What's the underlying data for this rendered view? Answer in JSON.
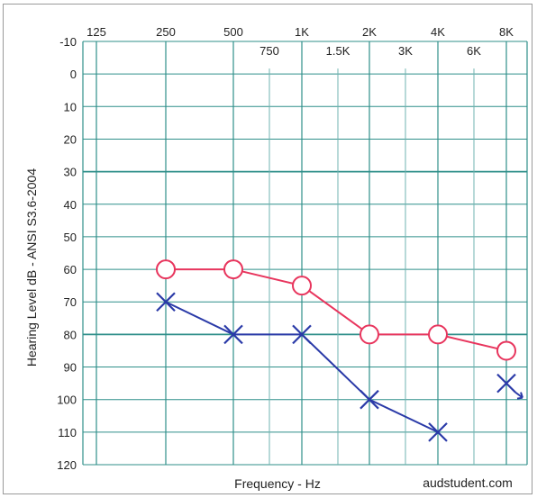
{
  "chart_data": {
    "type": "line",
    "ylabel": "Hearing Level dB - ANSI S3.6-2004",
    "xlabel": "Frequency - Hz",
    "watermark": "audstudent.com",
    "x_ticks_top": [
      "125",
      "250",
      "500",
      "1K",
      "2K",
      "4K",
      "8K"
    ],
    "x_ticks_mid": [
      "750",
      "1.5K",
      "3K",
      "6K"
    ],
    "y_ticks": [
      "-10",
      "0",
      "10",
      "20",
      "30",
      "40",
      "50",
      "60",
      "70",
      "80",
      "90",
      "100",
      "110",
      "120"
    ],
    "ylim": [
      -10,
      120
    ],
    "y_inverted": true,
    "grid": true,
    "series": [
      {
        "color": "#e8355d",
        "marker": "circle",
        "x": [
          "250",
          "500",
          "1K",
          "2K",
          "4K",
          "8K"
        ],
        "values": [
          60,
          60,
          65,
          80,
          80,
          85
        ]
      },
      {
        "color": "#2a3aa8",
        "marker": "x",
        "x": [
          "250",
          "500",
          "1K",
          "2K",
          "4K"
        ],
        "values": [
          70,
          80,
          80,
          100,
          110
        ]
      },
      {
        "color": "#2a3aa8",
        "marker": "x-arrow",
        "x": [
          "8K"
        ],
        "values": [
          95
        ]
      }
    ]
  }
}
